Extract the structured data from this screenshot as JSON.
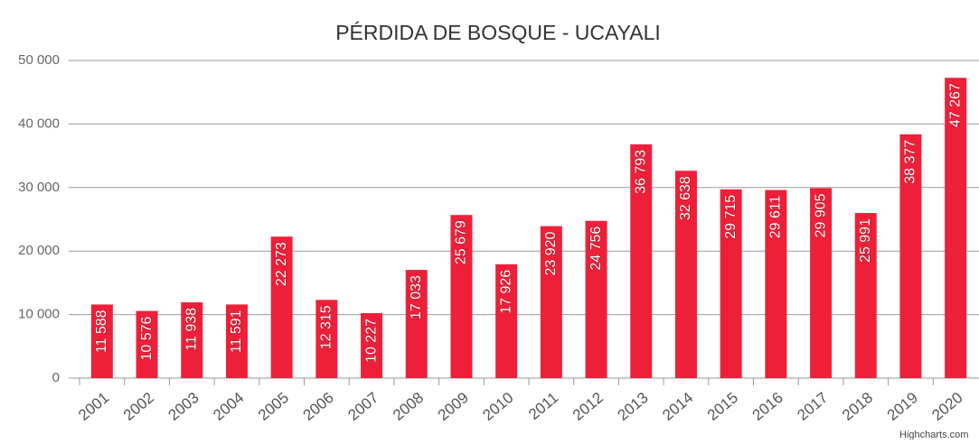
{
  "chart_data": {
    "type": "bar",
    "title": "PÉRDIDA DE BOSQUE - UCAYALI",
    "categories": [
      "2001",
      "2002",
      "2003",
      "2004",
      "2005",
      "2006",
      "2007",
      "2008",
      "2009",
      "2010",
      "2011",
      "2012",
      "2013",
      "2014",
      "2015",
      "2016",
      "2017",
      "2018",
      "2019",
      "2020"
    ],
    "values": [
      11588,
      10576,
      11938,
      11591,
      22273,
      12315,
      10227,
      17033,
      25679,
      17926,
      23920,
      24756,
      36793,
      32638,
      29715,
      29611,
      29905,
      25991,
      38377,
      47267
    ],
    "value_labels": [
      "11 588",
      "10 576",
      "11 938",
      "11 591",
      "22 273",
      "12 315",
      "10 227",
      "17 033",
      "25 679",
      "17 926",
      "23 920",
      "24 756",
      "36 793",
      "32 638",
      "29 715",
      "29 611",
      "29 905",
      "25 991",
      "38 377",
      "47 267"
    ],
    "color": "#ee2039",
    "ylim": [
      0,
      50000
    ],
    "yticks": [
      0,
      {
        "value": 10000,
        "label": "10 000"
      },
      {
        "value": 20000,
        "label": "20 000"
      },
      {
        "value": 30000,
        "label": "30 000"
      },
      {
        "value": 40000,
        "label": "40 000"
      },
      {
        "value": 50000,
        "label": "50 000"
      }
    ],
    "grid": true,
    "credit": "Highcharts.com"
  }
}
